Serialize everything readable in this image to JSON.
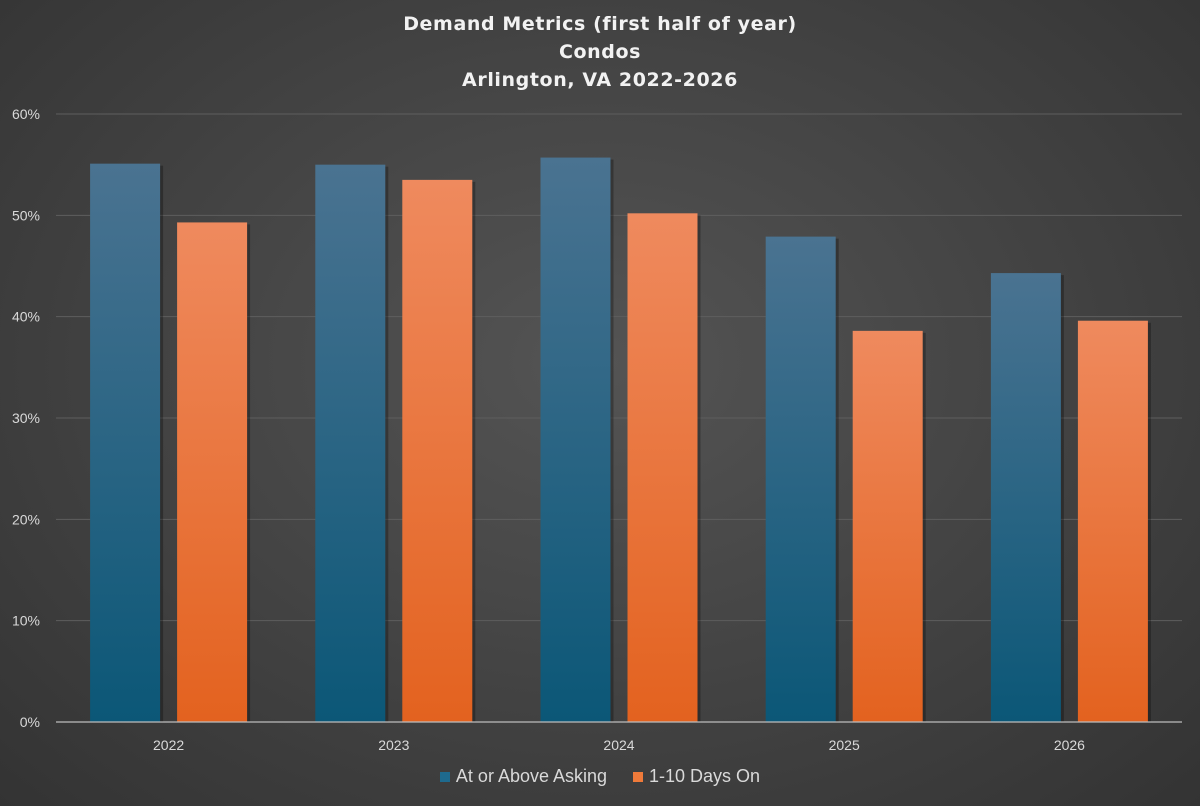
{
  "chart_data": {
    "type": "bar",
    "title_lines": [
      "Demand Metrics (first half of year)",
      "Condos",
      "Arlington, VA 2022-2026"
    ],
    "categories": [
      "2022",
      "2023",
      "2024",
      "2025",
      "2026"
    ],
    "series": [
      {
        "name": "At or Above Asking",
        "values": [
          55.1,
          55.0,
          55.7,
          47.9,
          44.3
        ],
        "color_top": "#4a7391",
        "color_bottom": "#0b5777",
        "legend_color": "#1e6a8e"
      },
      {
        "name": "1-10 Days On",
        "values": [
          49.3,
          53.5,
          50.2,
          38.6,
          39.6
        ],
        "color_top": "#ef8a5e",
        "color_bottom": "#e3621f",
        "legend_color": "#ef7a3a"
      }
    ],
    "ylim": [
      0,
      60
    ],
    "yticks": [
      0,
      10,
      20,
      30,
      40,
      50,
      60
    ],
    "ytick_labels": [
      "0%",
      "10%",
      "20%",
      "30%",
      "40%",
      "50%",
      "60%"
    ],
    "xlabel": "",
    "ylabel": "",
    "grid": true,
    "legend_position": "bottom"
  }
}
